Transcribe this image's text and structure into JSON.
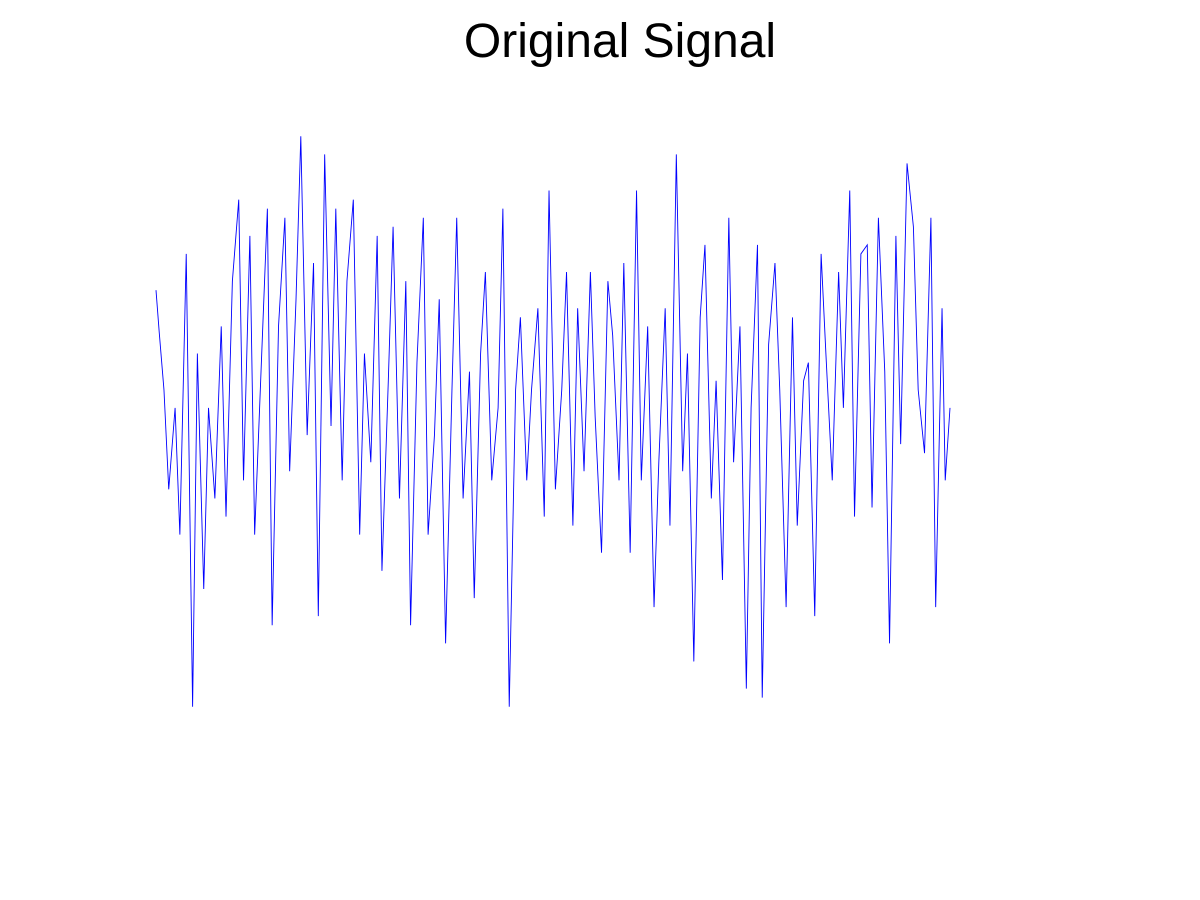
{
  "chart_data": {
    "type": "line",
    "title": "Original Signal",
    "xlabel": "",
    "ylabel": "",
    "axes_visible": false,
    "grid": false,
    "legend": "none",
    "xlim": [
      1,
      500
    ],
    "ylim": [
      -1.8,
      1.8
    ],
    "series": [
      {
        "color": "#0000ff",
        "x": [
          1,
          3,
          6,
          9,
          13,
          16,
          20,
          24,
          27,
          31,
          34,
          38,
          42,
          45,
          49,
          53,
          56,
          60,
          63,
          67,
          71,
          74,
          78,
          82,
          85,
          89,
          92,
          96,
          100,
          103,
          107,
          111,
          114,
          118,
          121,
          125,
          129,
          132,
          136,
          140,
          143,
          147,
          150,
          154,
          158,
          161,
          165,
          169,
          172,
          176,
          179,
          183,
          187,
          190,
          194,
          198,
          201,
          205,
          208,
          212,
          216,
          219,
          223,
          227,
          230,
          234,
          237,
          241,
          245,
          248,
          252,
          256,
          259,
          263,
          266,
          270,
          274,
          277,
          281,
          285,
          288,
          292,
          295,
          299,
          303,
          306,
          310,
          314,
          317,
          321,
          324,
          328,
          332,
          335,
          339,
          343,
          346,
          350,
          353,
          357,
          361,
          364,
          368,
          372,
          375,
          379,
          382,
          386,
          390,
          393,
          397,
          401,
          404,
          408,
          411,
          415,
          419,
          422,
          426,
          430,
          433,
          437,
          440,
          444,
          448,
          451,
          455,
          459,
          462,
          466,
          469,
          473,
          477,
          480,
          484,
          488,
          491,
          495,
          497,
          500
        ],
        "y": [
          0.75,
          0.52,
          0.2,
          -0.35,
          0.1,
          -0.6,
          0.95,
          -1.55,
          0.4,
          -0.9,
          0.1,
          -0.4,
          0.55,
          -0.5,
          0.8,
          1.25,
          -0.3,
          1.05,
          -0.6,
          0.3,
          1.2,
          -1.1,
          0.55,
          1.15,
          -0.25,
          0.7,
          1.6,
          -0.05,
          0.9,
          -1.05,
          1.5,
          0.0,
          1.2,
          -0.3,
          0.8,
          1.25,
          -0.6,
          0.4,
          -0.2,
          1.05,
          -0.8,
          0.25,
          1.1,
          -0.4,
          0.8,
          -1.1,
          0.35,
          1.15,
          -0.6,
          -0.05,
          0.7,
          -1.2,
          0.2,
          1.15,
          -0.4,
          0.3,
          -0.95,
          0.4,
          0.85,
          -0.3,
          0.1,
          1.2,
          -1.55,
          0.2,
          0.6,
          -0.3,
          0.2,
          0.65,
          -0.5,
          1.3,
          -0.35,
          0.2,
          0.85,
          -0.55,
          0.65,
          -0.25,
          0.85,
          0.05,
          -0.7,
          0.8,
          0.5,
          -0.3,
          0.9,
          -0.7,
          1.3,
          -0.3,
          0.55,
          -1.0,
          -0.2,
          0.65,
          -0.55,
          1.5,
          -0.25,
          0.4,
          -1.3,
          0.6,
          1.0,
          -0.4,
          0.25,
          -0.85,
          1.15,
          -0.2,
          0.55,
          -1.45,
          0.1,
          1.0,
          -1.5,
          0.45,
          0.9,
          0.2,
          -1.0,
          0.6,
          -0.55,
          0.25,
          0.35,
          -1.05,
          0.95,
          0.4,
          -0.3,
          0.85,
          0.1,
          1.3,
          -0.5,
          0.95,
          1.0,
          -0.45,
          1.15,
          0.3,
          -1.2,
          1.05,
          -0.1,
          1.45,
          1.1,
          0.2,
          -0.15,
          1.15,
          -1.0,
          0.65,
          -0.3,
          0.1
        ]
      }
    ]
  }
}
